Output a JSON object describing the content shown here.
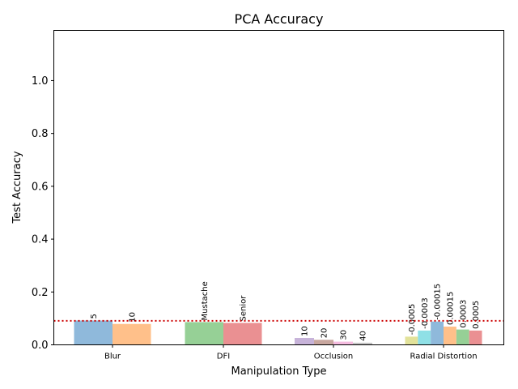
{
  "chart_data": {
    "type": "bar",
    "title": "PCA Accuracy",
    "xlabel": "Manipulation Type",
    "ylabel": "Test Accuracy",
    "ylim": [
      0,
      1.19
    ],
    "yticks": [
      "0.0",
      "0.2",
      "0.4",
      "0.6",
      "0.8",
      "1.0"
    ],
    "grid": false,
    "baseline": {
      "value": 0.091,
      "color": "#cc0000",
      "style": "dotted"
    },
    "groups": [
      {
        "category": "Blur",
        "bars": [
          {
            "label": "5",
            "value": 0.092,
            "color": "#8fb9db"
          },
          {
            "label": "10",
            "value": 0.079,
            "color": "#ffc08a"
          }
        ]
      },
      {
        "category": "DFI",
        "bars": [
          {
            "label": "Mustache",
            "value": 0.086,
            "color": "#96d096"
          },
          {
            "label": "Senior",
            "value": 0.083,
            "color": "#ea9092"
          }
        ]
      },
      {
        "category": "Occlusion",
        "bars": [
          {
            "label": "10",
            "value": 0.026,
            "color": "#c7b3d9"
          },
          {
            "label": "20",
            "value": 0.019,
            "color": "#c8a79f"
          },
          {
            "label": "30",
            "value": 0.012,
            "color": "#f5bce0"
          },
          {
            "label": "40",
            "value": 0.008,
            "color": "#c4c4c4"
          }
        ]
      },
      {
        "category": "Radial Distortion",
        "bars": [
          {
            "label": "-0.0005",
            "value": 0.031,
            "color": "#e2e29a"
          },
          {
            "label": "-0.0003",
            "value": 0.054,
            "color": "#8fe0e6"
          },
          {
            "label": "-0.00015",
            "value": 0.088,
            "color": "#8fb9db"
          },
          {
            "label": "0.00015",
            "value": 0.069,
            "color": "#ffc08a"
          },
          {
            "label": "0.0003",
            "value": 0.058,
            "color": "#96d096"
          },
          {
            "label": "0.0005",
            "value": 0.054,
            "color": "#ea9092"
          }
        ]
      }
    ]
  }
}
